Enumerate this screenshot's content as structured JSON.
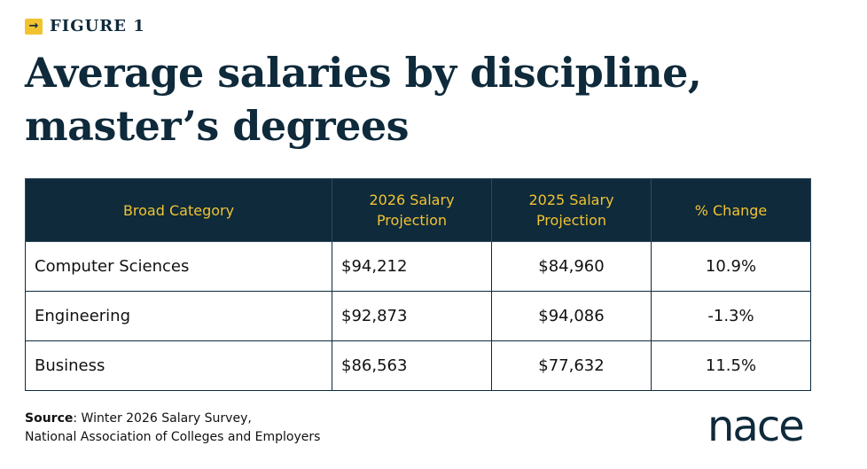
{
  "figure_label": "FIGURE 1",
  "icons": {
    "figure_arrow": "arrow-right-icon"
  },
  "title": "Average salaries by discipline, master’s degrees",
  "colors": {
    "navy": "#0e2a3b",
    "accent_yellow": "#f2c331"
  },
  "chart_data": {
    "type": "table",
    "title": "Average salaries by discipline, master’s degrees",
    "columns": [
      "Broad Category",
      "2026 Salary Projection",
      "2025 Salary Projection",
      "% Change"
    ],
    "rows": [
      [
        "Computer Sciences",
        "$94,212",
        "$84,960",
        "10.9%"
      ],
      [
        "Engineering",
        "$92,873",
        "$94,086",
        "-1.3%"
      ],
      [
        "Business",
        "$86,563",
        "$77,632",
        "11.5%"
      ]
    ]
  },
  "source": {
    "label": "Source",
    "text": ": Winter 2026 Salary Survey,",
    "line2": "National Association of Colleges and Employers"
  },
  "logo": {
    "text": "nace"
  }
}
